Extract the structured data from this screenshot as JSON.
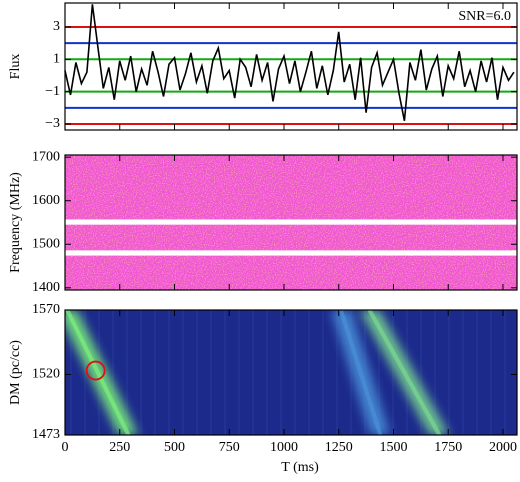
{
  "chart_data": [
    {
      "type": "line",
      "ylabel": "Flux",
      "annotation": "SNR=6.0",
      "xlim": [
        0,
        2064
      ],
      "ylim": [
        -3.37,
        4.48
      ],
      "yticks": [
        {
          "value": -3,
          "label": "−3"
        },
        {
          "value": -1,
          "label": "−1"
        },
        1,
        3
      ],
      "color": "#000000",
      "x": [
        0,
        25,
        50,
        75,
        100,
        125,
        150,
        175,
        200,
        225,
        250,
        275,
        300,
        325,
        350,
        375,
        400,
        425,
        450,
        475,
        500,
        525,
        550,
        575,
        600,
        625,
        650,
        675,
        700,
        725,
        750,
        775,
        800,
        825,
        850,
        875,
        900,
        925,
        950,
        975,
        1000,
        1025,
        1050,
        1075,
        1100,
        1125,
        1150,
        1175,
        1200,
        1225,
        1250,
        1275,
        1300,
        1325,
        1350,
        1375,
        1400,
        1425,
        1450,
        1475,
        1500,
        1525,
        1550,
        1575,
        1600,
        1625,
        1650,
        1675,
        1700,
        1725,
        1750,
        1775,
        1800,
        1825,
        1850,
        1875,
        1900,
        1925,
        1950,
        1975,
        2000,
        2025,
        2050
      ],
      "values": [
        0.3,
        -1.2,
        0.8,
        -0.5,
        0.2,
        4.4,
        1.8,
        -0.8,
        0.5,
        -1.5,
        0.9,
        -0.3,
        1.2,
        -1.0,
        0.4,
        -0.6,
        1.5,
        0.2,
        -1.3,
        0.7,
        1.1,
        -0.9,
        0.1,
        1.4,
        -0.4,
        0.6,
        -1.1,
        0.9,
        1.7,
        -0.2,
        0.3,
        -1.4,
        1.0,
        0.5,
        -0.7,
        1.3,
        -0.3,
        0.8,
        -1.6,
        0.4,
        1.2,
        -0.5,
        0.9,
        -1.0,
        0.2,
        1.5,
        -0.8,
        0.6,
        -1.2,
        0.3,
        2.7,
        -0.4,
        0.7,
        -1.5,
        1.1,
        -2.3,
        0.5,
        1.4,
        -0.6,
        0.2,
        1.0,
        -1.1,
        -2.8,
        0.8,
        -0.3,
        1.6,
        -0.9,
        0.4,
        1.2,
        -1.3,
        0.6,
        -0.2,
        1.5,
        -0.7,
        0.3,
        -1.0,
        0.9,
        -0.4,
        1.1,
        -1.5,
        0.5,
        -0.3,
        0.2
      ],
      "hlines": [
        {
          "value": 3,
          "color": "#dd1111"
        },
        {
          "value": 2,
          "color": "#1133cc"
        },
        {
          "value": 1,
          "color": "#11aa11"
        },
        {
          "value": -1,
          "color": "#11aa11"
        },
        {
          "value": -2,
          "color": "#1133cc"
        },
        {
          "value": -3,
          "color": "#dd1111"
        }
      ]
    },
    {
      "type": "heatmap",
      "ylabel": "Frequency (MHz)",
      "xlim": [
        0,
        2064
      ],
      "ylim": [
        1395,
        1705
      ],
      "yticks": [
        1400,
        1500,
        1600,
        1700
      ],
      "background": "#f055d5",
      "masked": [
        [
          1545,
          1557
        ],
        [
          1474,
          1486
        ]
      ]
    },
    {
      "type": "heatmap",
      "ylabel": "DM (pc/cc)",
      "xlabel": "T (ms)",
      "xlim": [
        0,
        2064
      ],
      "ylim": [
        1473,
        1570
      ],
      "yticks": [
        1473,
        1520,
        1570
      ],
      "xticks": [
        0,
        250,
        500,
        750,
        1000,
        1250,
        1500,
        1750,
        2000
      ],
      "background": "#1c2a8c",
      "tracks": [
        {
          "t_top": 10,
          "t_bottom": 290,
          "color": "#7cf07a"
        },
        {
          "t_top": 1260,
          "t_bottom": 1440,
          "color": "#4a90d8"
        },
        {
          "t_top": 1390,
          "t_bottom": 1710,
          "color": "#7ad890"
        }
      ],
      "marker": {
        "t": 140,
        "dm": 1523,
        "color": "#e01010"
      }
    }
  ]
}
